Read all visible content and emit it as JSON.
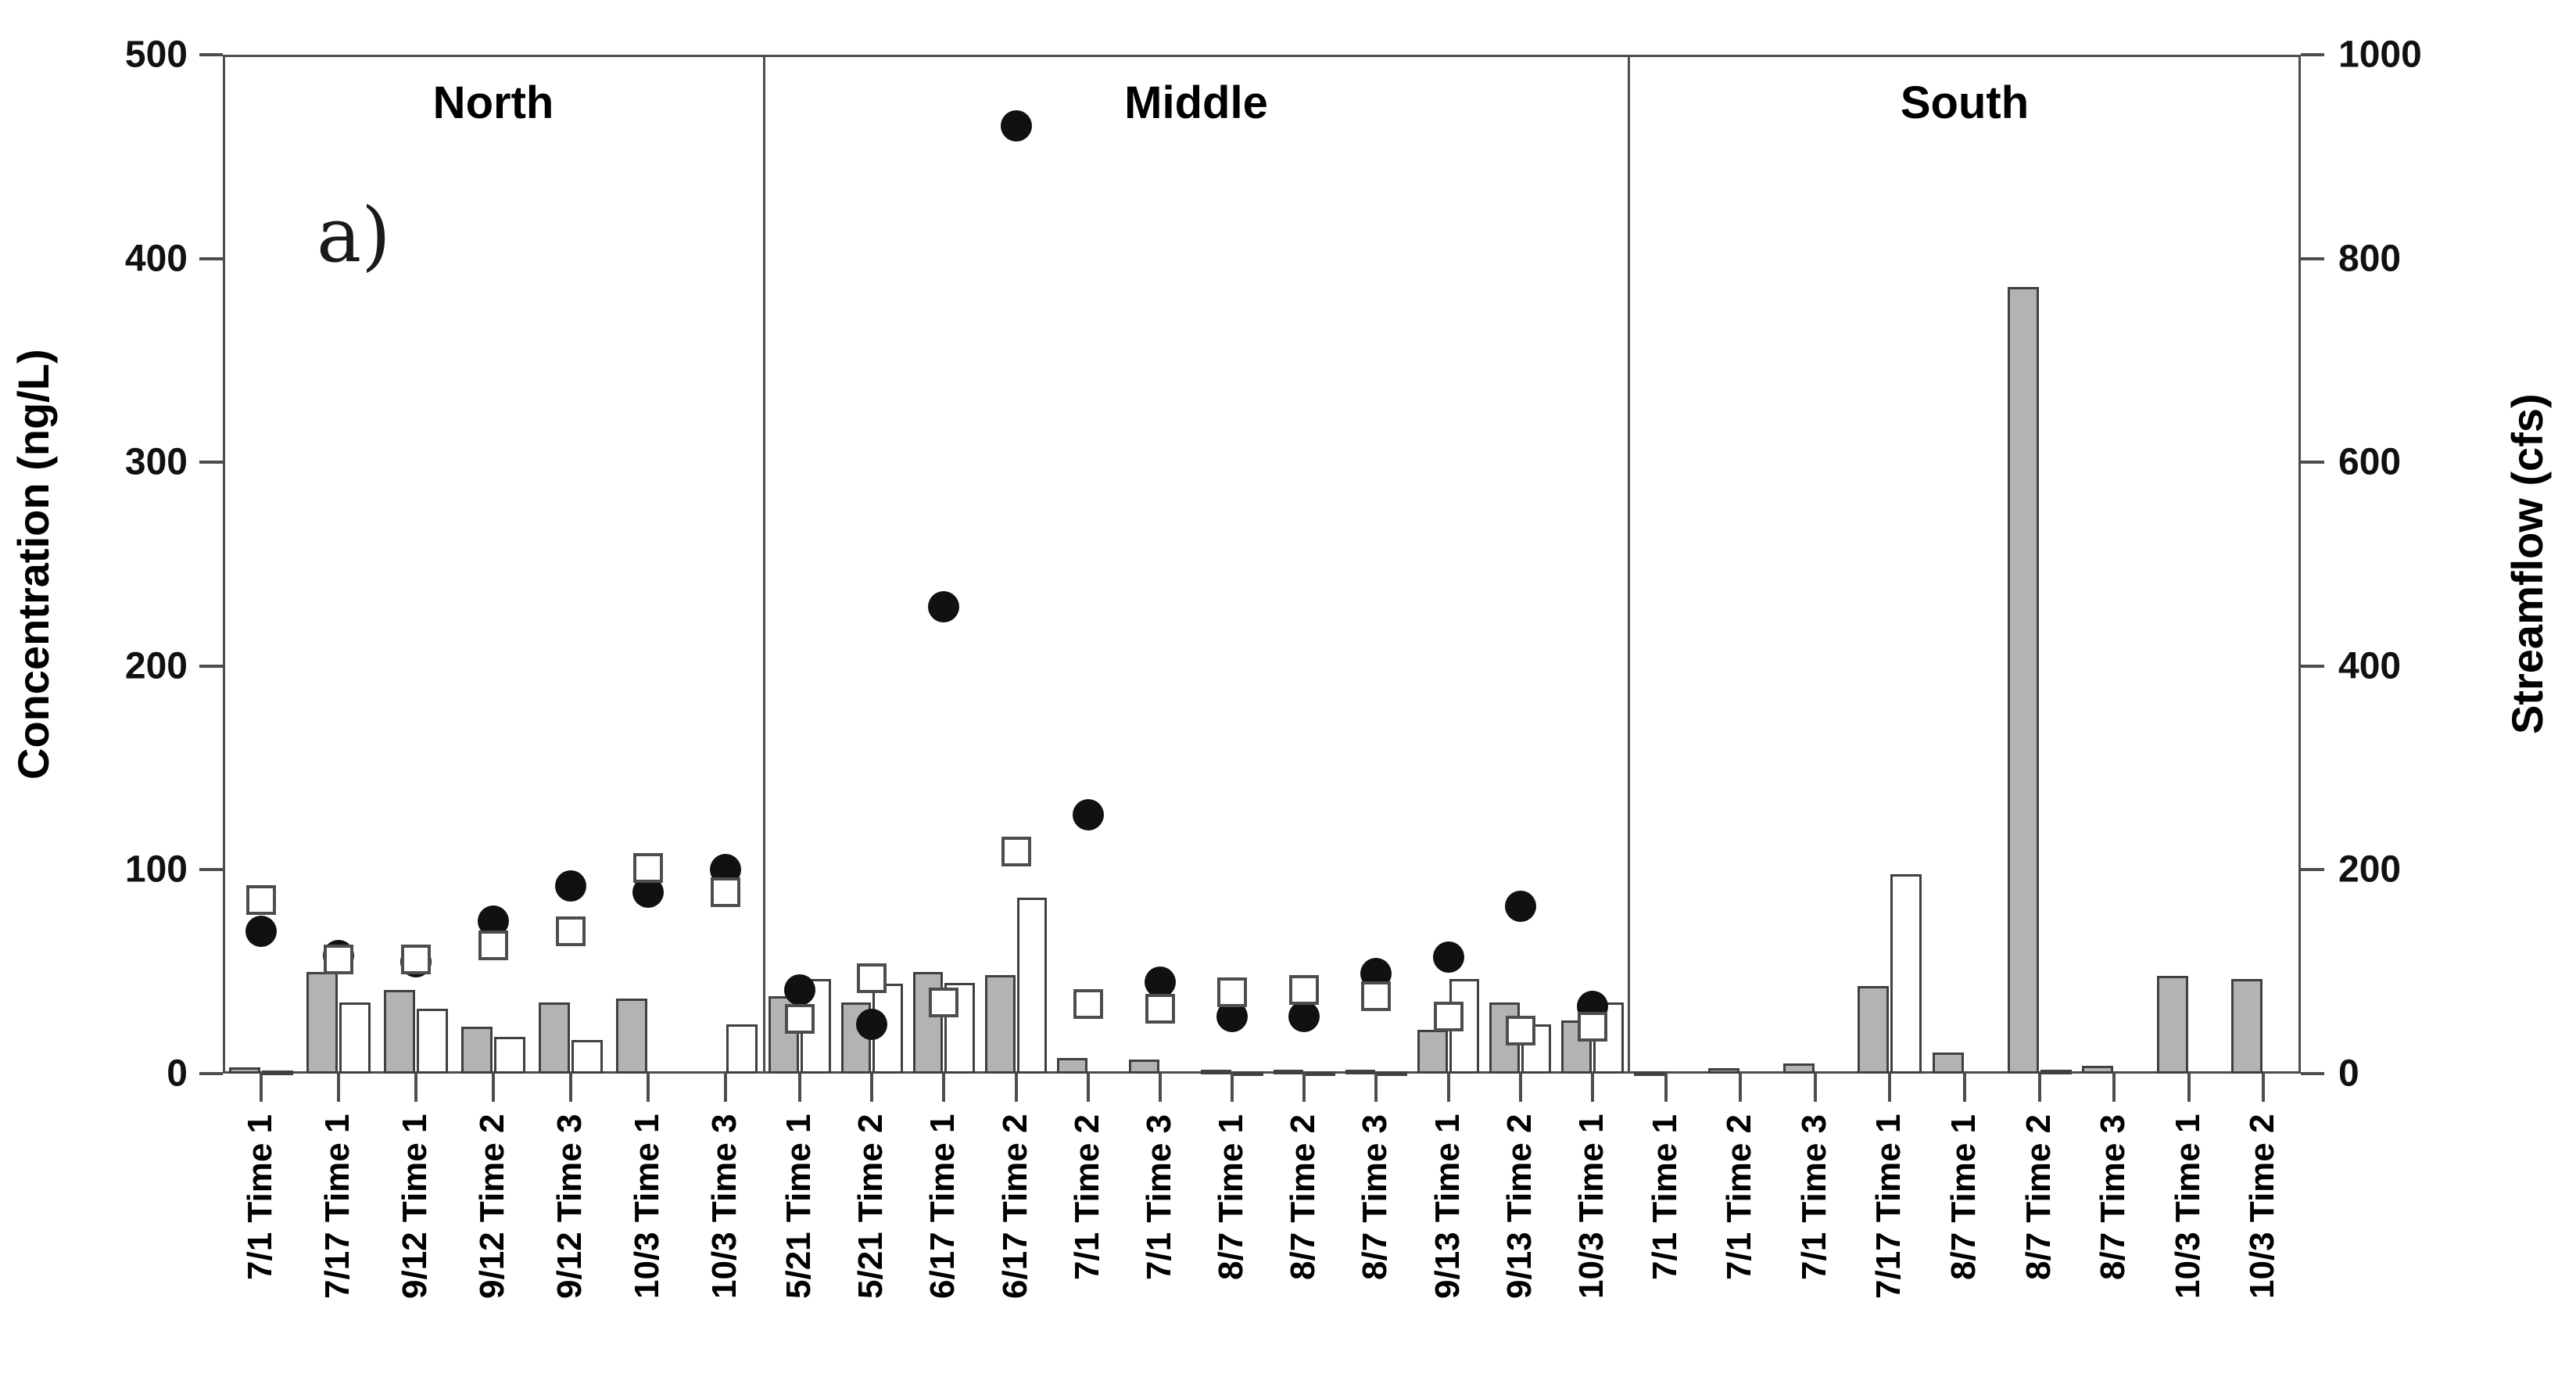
{
  "figure": {
    "annotation_label": "a)",
    "left_axis": {
      "label": "Concentration (ng/L)",
      "min": 0,
      "max": 500,
      "ticks": [
        0,
        100,
        200,
        300,
        400,
        500
      ]
    },
    "right_axis": {
      "label": "Streamflow (cfs)",
      "min": 0,
      "max": 1000,
      "ticks": [
        0,
        200,
        400,
        600,
        800,
        1000
      ]
    },
    "colors": {
      "bar_gray_fill": "#b3b3b3",
      "bar_border": "#404040",
      "marker_fill": "#111111",
      "frame": "#4d4d4d"
    }
  },
  "chart_data": {
    "type": "combo-bar-scatter",
    "title": "",
    "xlabel": "",
    "ylabel_left": "Concentration (ng/L)",
    "ylabel_right": "Streamflow (cfs)",
    "left_ylim": [
      0,
      500
    ],
    "right_ylim": [
      0,
      1000
    ],
    "grid": false,
    "legend": "none shown in figure; series are gray bars, open bars, filled circles, open squares",
    "series_notes": {
      "bar_gray_cfs": "gray filled bars, right streamflow axis (cfs)",
      "bar_white_cfs": "open/white outlined bars, right streamflow axis (cfs)",
      "circle_ngL": "filled circle markers, left concentration axis (ng/L)",
      "square_ngL": "open square markers, left concentration axis (ng/L)"
    },
    "panels": [
      {
        "name": "North",
        "categories": [
          "7/1 Time 1",
          "7/17 Time 1",
          "9/12 Time 1",
          "9/12 Time 2",
          "9/12 Time 3",
          "10/3 Time 1",
          "10/3 Time 3"
        ],
        "bar_gray_cfs": [
          6,
          100,
          82,
          46,
          70,
          74,
          null
        ],
        "bar_white_cfs": [
          3,
          70,
          64,
          36,
          33,
          null,
          48
        ],
        "circle_ngL": [
          70,
          58,
          55,
          75,
          92,
          89,
          100
        ],
        "square_ngL": [
          85,
          56,
          56,
          63,
          70,
          101,
          89
        ]
      },
      {
        "name": "Middle",
        "categories": [
          "5/21 Time 1",
          "5/21 Time 2",
          "6/17 Time 1",
          "6/17 Time 2",
          "7/1 Time 2",
          "7/1 Time 3",
          "8/7 Time 1",
          "8/7 Time 2",
          "8/7 Time 3",
          "9/13 Time 1",
          "9/13 Time 2",
          "10/3 Time 1"
        ],
        "bar_gray_cfs": [
          76,
          70,
          100,
          97,
          15,
          14,
          4,
          4,
          4,
          43,
          70,
          52
        ],
        "bar_white_cfs": [
          93,
          88,
          89,
          173,
          null,
          null,
          2,
          2,
          2,
          93,
          48,
          70
        ],
        "circle_ngL": [
          41,
          24,
          229,
          465,
          127,
          45,
          28,
          28,
          49,
          57,
          82,
          33
        ],
        "square_ngL": [
          27,
          47,
          35,
          109,
          34,
          32,
          40,
          41,
          38,
          28,
          21,
          23
        ]
      },
      {
        "name": "South",
        "categories": [
          "7/1 Time 1",
          "7/1 Time 2",
          "7/1 Time 3",
          "7/17 Time 1",
          "8/7 Time 1",
          "8/7 Time 2",
          "8/7 Time 3",
          "10/3 Time 1",
          "10/3 Time 2"
        ],
        "bar_gray_cfs": [
          2,
          5,
          10,
          86,
          21,
          772,
          8,
          96,
          93
        ],
        "bar_white_cfs": [
          null,
          null,
          null,
          196,
          null,
          4,
          null,
          null,
          null
        ],
        "circle_ngL": [
          null,
          null,
          null,
          null,
          null,
          null,
          null,
          null,
          null
        ],
        "square_ngL": [
          null,
          null,
          null,
          null,
          null,
          null,
          null,
          null,
          null
        ]
      }
    ]
  }
}
